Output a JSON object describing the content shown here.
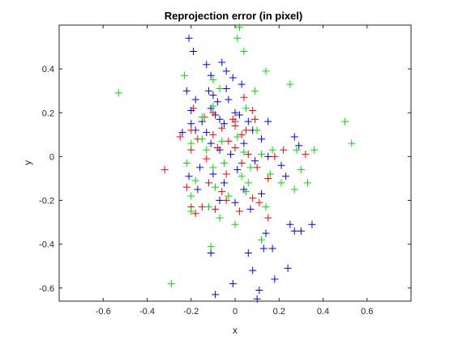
{
  "chart_data": {
    "type": "scatter",
    "title": "Reprojection error (in pixel)",
    "xlabel": "x",
    "ylabel": "y",
    "xlim": [
      -0.8,
      0.8
    ],
    "ylim": [
      -0.66,
      0.6
    ],
    "xticks": [
      "-0.6",
      "-0.4",
      "-0.2",
      "0",
      "0.2",
      "0.4",
      "0.6"
    ],
    "yticks": [
      "0.4",
      "0.2",
      "0",
      "-0.2",
      "-0.4",
      "-0.6"
    ],
    "grid": false,
    "marker": "+",
    "series": [
      {
        "color": "#0000ff",
        "points": [
          [
            -0.21,
            0.54
          ],
          [
            -0.19,
            0.48
          ],
          [
            -0.13,
            0.42
          ],
          [
            -0.06,
            0.43
          ],
          [
            -0.04,
            0.39
          ],
          [
            -0.11,
            0.37
          ],
          [
            -0.01,
            0.36
          ],
          [
            -0.22,
            0.3
          ],
          [
            -0.18,
            0.26
          ],
          [
            -0.12,
            0.3
          ],
          [
            -0.1,
            0.28
          ],
          [
            -0.08,
            0.25
          ],
          [
            -0.04,
            0.31
          ],
          [
            -0.03,
            0.26
          ],
          [
            0.03,
            0.33
          ],
          [
            -0.2,
            0.21
          ],
          [
            -0.11,
            0.22
          ],
          [
            -0.09,
            0.19
          ],
          [
            -0.2,
            0.15
          ],
          [
            -0.24,
            0.11
          ],
          [
            -0.18,
            0.12
          ],
          [
            -0.15,
            0.16
          ],
          [
            -0.07,
            0.17
          ],
          [
            -0.05,
            0.15
          ],
          [
            0.0,
            0.2
          ],
          [
            0.02,
            0.19
          ],
          [
            0.06,
            0.16
          ],
          [
            0.08,
            0.12
          ],
          [
            0.12,
            0.08
          ],
          [
            0.15,
            0.16
          ],
          [
            -0.13,
            0.11
          ],
          [
            -0.11,
            0.06
          ],
          [
            -0.07,
            0.03
          ],
          [
            -0.02,
            0.01
          ],
          [
            0.04,
            0.06
          ],
          [
            0.09,
            -0.02
          ],
          [
            0.15,
            0.0
          ],
          [
            0.21,
            -0.04
          ],
          [
            0.23,
            -0.09
          ],
          [
            0.27,
            0.09
          ],
          [
            0.29,
            0.05
          ],
          [
            -0.16,
            -0.05
          ],
          [
            -0.1,
            -0.08
          ],
          [
            -0.05,
            -0.12
          ],
          [
            0.01,
            -0.06
          ],
          [
            0.04,
            -0.15
          ],
          [
            -0.21,
            -0.09
          ],
          [
            -0.17,
            -0.15
          ],
          [
            -0.07,
            -0.2
          ],
          [
            0.0,
            -0.21
          ],
          [
            0.07,
            -0.24
          ],
          [
            0.12,
            -0.17
          ],
          [
            0.25,
            -0.31
          ],
          [
            0.27,
            -0.34
          ],
          [
            0.3,
            -0.34
          ],
          [
            0.35,
            -0.31
          ],
          [
            0.14,
            -0.35
          ],
          [
            0.13,
            -0.42
          ],
          [
            0.17,
            -0.42
          ],
          [
            -0.11,
            -0.44
          ],
          [
            0.06,
            -0.44
          ],
          [
            0.08,
            -0.52
          ],
          [
            0.24,
            -0.51
          ],
          [
            0.18,
            -0.56
          ],
          [
            0.11,
            -0.61
          ],
          [
            -0.01,
            -0.58
          ],
          [
            -0.09,
            -0.63
          ],
          [
            0.1,
            -0.65
          ]
        ]
      },
      {
        "color": "#ff0000",
        "points": [
          [
            -0.19,
            0.22
          ],
          [
            -0.14,
            0.18
          ],
          [
            -0.1,
            0.2
          ],
          [
            -0.2,
            0.12
          ],
          [
            -0.25,
            0.09
          ],
          [
            -0.17,
            0.08
          ],
          [
            -0.1,
            0.1
          ],
          [
            -0.06,
            0.13
          ],
          [
            -0.03,
            0.07
          ],
          [
            0.0,
            0.16
          ],
          [
            0.03,
            0.1
          ],
          [
            0.05,
            0.12
          ],
          [
            0.09,
            0.17
          ],
          [
            -0.2,
            0.03
          ],
          [
            -0.13,
            -0.01
          ],
          [
            -0.08,
            0.04
          ],
          [
            0.0,
            0.04
          ],
          [
            0.06,
            0.01
          ],
          [
            0.1,
            -0.05
          ],
          [
            0.18,
            0.0
          ],
          [
            0.22,
            0.03
          ],
          [
            0.32,
            0.01
          ],
          [
            -0.32,
            -0.06
          ],
          [
            -0.22,
            -0.14
          ],
          [
            -0.12,
            -0.12
          ],
          [
            -0.04,
            -0.08
          ],
          [
            0.03,
            -0.03
          ],
          [
            0.15,
            -0.1
          ],
          [
            -0.2,
            -0.23
          ],
          [
            -0.18,
            -0.26
          ],
          [
            -0.09,
            -0.24
          ],
          [
            -0.04,
            -0.2
          ],
          [
            0.08,
            -0.19
          ],
          [
            0.11,
            -0.21
          ],
          [
            0.15,
            -0.28
          ],
          [
            0.04,
            0.27
          ],
          [
            0.08,
            0.21
          ],
          [
            -0.01,
            0.17
          ],
          [
            0.02,
            -0.25
          ],
          [
            0.0,
            0.14
          ],
          [
            -0.15,
            -0.23
          ],
          [
            -0.06,
            -0.16
          ]
        ]
      },
      {
        "color": "#00dd00",
        "points": [
          [
            0.02,
            0.59
          ],
          [
            0.01,
            0.54
          ],
          [
            0.04,
            0.48
          ],
          [
            -0.23,
            0.37
          ],
          [
            -0.1,
            0.35
          ],
          [
            0.14,
            0.39
          ],
          [
            0.25,
            0.33
          ],
          [
            0.09,
            0.3
          ],
          [
            -0.53,
            0.29
          ],
          [
            -0.07,
            0.31
          ],
          [
            -0.1,
            0.23
          ],
          [
            0.05,
            0.22
          ],
          [
            0.5,
            0.16
          ],
          [
            0.53,
            0.06
          ],
          [
            0.36,
            0.03
          ],
          [
            -0.2,
            0.06
          ],
          [
            -0.22,
            -0.03
          ],
          [
            -0.15,
            0.08
          ],
          [
            -0.13,
            0.03
          ],
          [
            -0.06,
            0.07
          ],
          [
            0.01,
            0.09
          ],
          [
            0.04,
            0.02
          ],
          [
            0.12,
            0.01
          ],
          [
            0.17,
            0.03
          ],
          [
            0.28,
            0.03
          ],
          [
            -0.18,
            -0.11
          ],
          [
            -0.1,
            -0.05
          ],
          [
            -0.05,
            -0.03
          ],
          [
            0.03,
            -0.09
          ],
          [
            0.07,
            -0.05
          ],
          [
            0.16,
            -0.08
          ],
          [
            0.21,
            -0.12
          ],
          [
            0.3,
            -0.06
          ],
          [
            0.33,
            -0.12
          ],
          [
            0.27,
            -0.15
          ],
          [
            -0.2,
            -0.18
          ],
          [
            -0.09,
            -0.14
          ],
          [
            -0.03,
            -0.18
          ],
          [
            0.05,
            -0.16
          ],
          [
            0.14,
            -0.23
          ],
          [
            -0.2,
            -0.25
          ],
          [
            -0.12,
            -0.23
          ],
          [
            -0.07,
            -0.28
          ],
          [
            0.0,
            -0.31
          ],
          [
            0.12,
            -0.38
          ],
          [
            -0.11,
            -0.41
          ],
          [
            -0.29,
            -0.58
          ],
          [
            0.06,
            -0.12
          ],
          [
            0.1,
            0.12
          ],
          [
            -0.15,
            0.18
          ]
        ]
      }
    ]
  }
}
